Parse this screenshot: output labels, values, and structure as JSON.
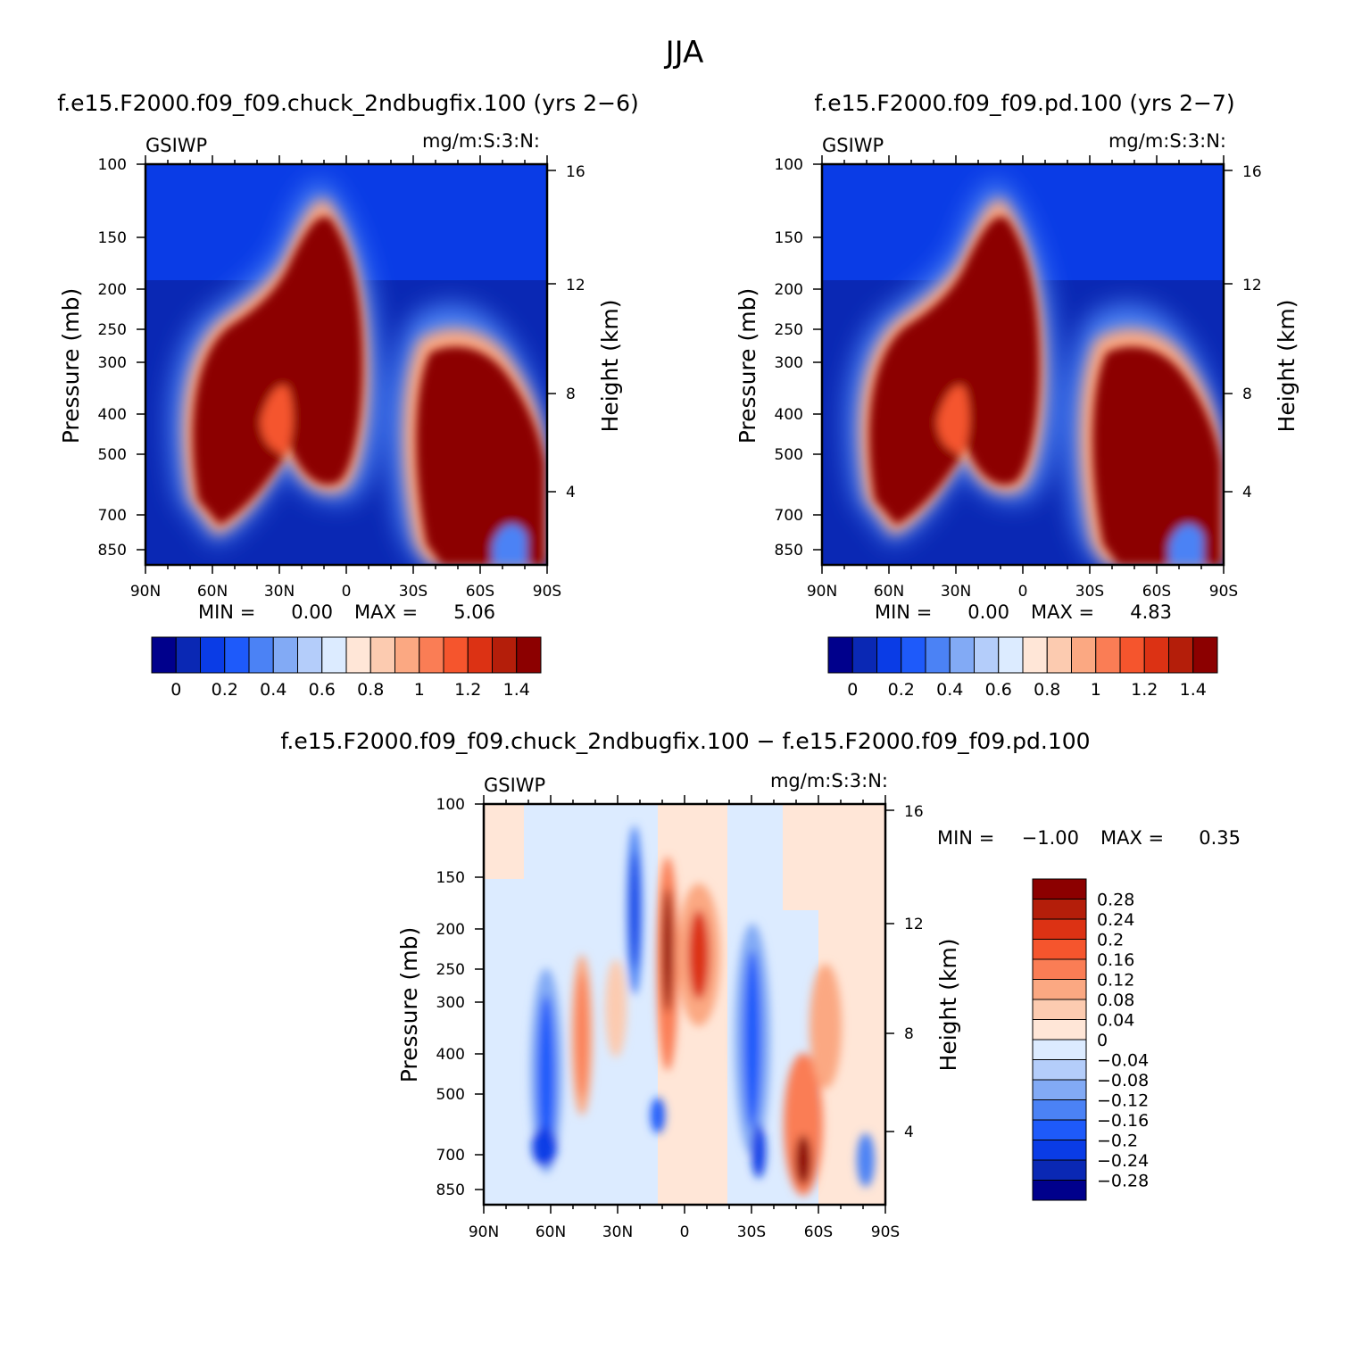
{
  "figure": {
    "title": "JJA"
  },
  "chart_data": [
    {
      "type": "heatmap",
      "title": "f.e15.F2000.f09_f09.chuck_2ndbugfix.100 (yrs 2−6)",
      "variable": "GSIWP",
      "units": "mg/m:S:3:N:",
      "ylabel": "Pressure (mb)",
      "ylabel_right": "Height (km)",
      "x_ticks": [
        "90N",
        "60N",
        "30N",
        "0",
        "30S",
        "60S",
        "90S"
      ],
      "y_ticks": [
        "100",
        "150",
        "200",
        "250",
        "300",
        "400",
        "500",
        "700",
        "850"
      ],
      "y_ticks_right": [
        "16",
        "12",
        "8",
        "4"
      ],
      "min_label": "MIN =",
      "min_value": "0.00",
      "max_label": "MAX =",
      "max_value": "5.06",
      "colorbar_labels": [
        "0",
        "0.2",
        "0.4",
        "0.6",
        "0.8",
        "1",
        "1.2",
        "1.4"
      ],
      "colorbar_colors": [
        "#00008c",
        "#0a28b4",
        "#0a3ce6",
        "#1e5afa",
        "#4b82f5",
        "#82aaf5",
        "#b4cdfa",
        "#dcebff",
        "#ffe6d7",
        "#fccbb0",
        "#fba882",
        "#fa7d55",
        "#f5552d",
        "#dc3214",
        "#b41e0a",
        "#8c0000"
      ]
    },
    {
      "type": "heatmap",
      "title": "f.e15.F2000.f09_f09.pd.100 (yrs 2−7)",
      "variable": "GSIWP",
      "units": "mg/m:S:3:N:",
      "ylabel": "Pressure (mb)",
      "ylabel_right": "Height (km)",
      "x_ticks": [
        "90N",
        "60N",
        "30N",
        "0",
        "30S",
        "60S",
        "90S"
      ],
      "y_ticks": [
        "100",
        "150",
        "200",
        "250",
        "300",
        "400",
        "500",
        "700",
        "850"
      ],
      "y_ticks_right": [
        "16",
        "12",
        "8",
        "4"
      ],
      "min_label": "MIN =",
      "min_value": "0.00",
      "max_label": "MAX =",
      "max_value": "4.83",
      "colorbar_labels": [
        "0",
        "0.2",
        "0.4",
        "0.6",
        "0.8",
        "1",
        "1.2",
        "1.4"
      ],
      "colorbar_colors": [
        "#00008c",
        "#0a28b4",
        "#0a3ce6",
        "#1e5afa",
        "#4b82f5",
        "#82aaf5",
        "#b4cdfa",
        "#dcebff",
        "#ffe6d7",
        "#fccbb0",
        "#fba882",
        "#fa7d55",
        "#f5552d",
        "#dc3214",
        "#b41e0a",
        "#8c0000"
      ]
    },
    {
      "type": "heatmap",
      "title": "f.e15.F2000.f09_f09.chuck_2ndbugfix.100 − f.e15.F2000.f09_f09.pd.100",
      "variable": "GSIWP",
      "units": "mg/m:S:3:N:",
      "ylabel": "Pressure (mb)",
      "ylabel_right": "Height (km)",
      "x_ticks": [
        "90N",
        "60N",
        "30N",
        "0",
        "30S",
        "60S",
        "90S"
      ],
      "y_ticks": [
        "100",
        "150",
        "200",
        "250",
        "300",
        "400",
        "500",
        "700",
        "850"
      ],
      "y_ticks_right": [
        "16",
        "12",
        "8",
        "4"
      ],
      "min_label": "MIN =",
      "min_value": "−1.00",
      "max_label": "MAX =",
      "max_value": "0.35",
      "colorbar_labels": [
        "0.28",
        "0.24",
        "0.2",
        "0.16",
        "0.12",
        "0.08",
        "0.04",
        "0",
        "−0.04",
        "−0.08",
        "−0.12",
        "−0.16",
        "−0.2",
        "−0.24",
        "−0.28"
      ],
      "colorbar_colors": [
        "#8c0000",
        "#b41e0a",
        "#dc3214",
        "#f5552d",
        "#fa7d55",
        "#fba882",
        "#fccbb0",
        "#ffe6d7",
        "#dcebff",
        "#b4cdfa",
        "#82aaf5",
        "#4b82f5",
        "#1e5afa",
        "#0a3ce6",
        "#0a28b4",
        "#00008c"
      ]
    }
  ]
}
